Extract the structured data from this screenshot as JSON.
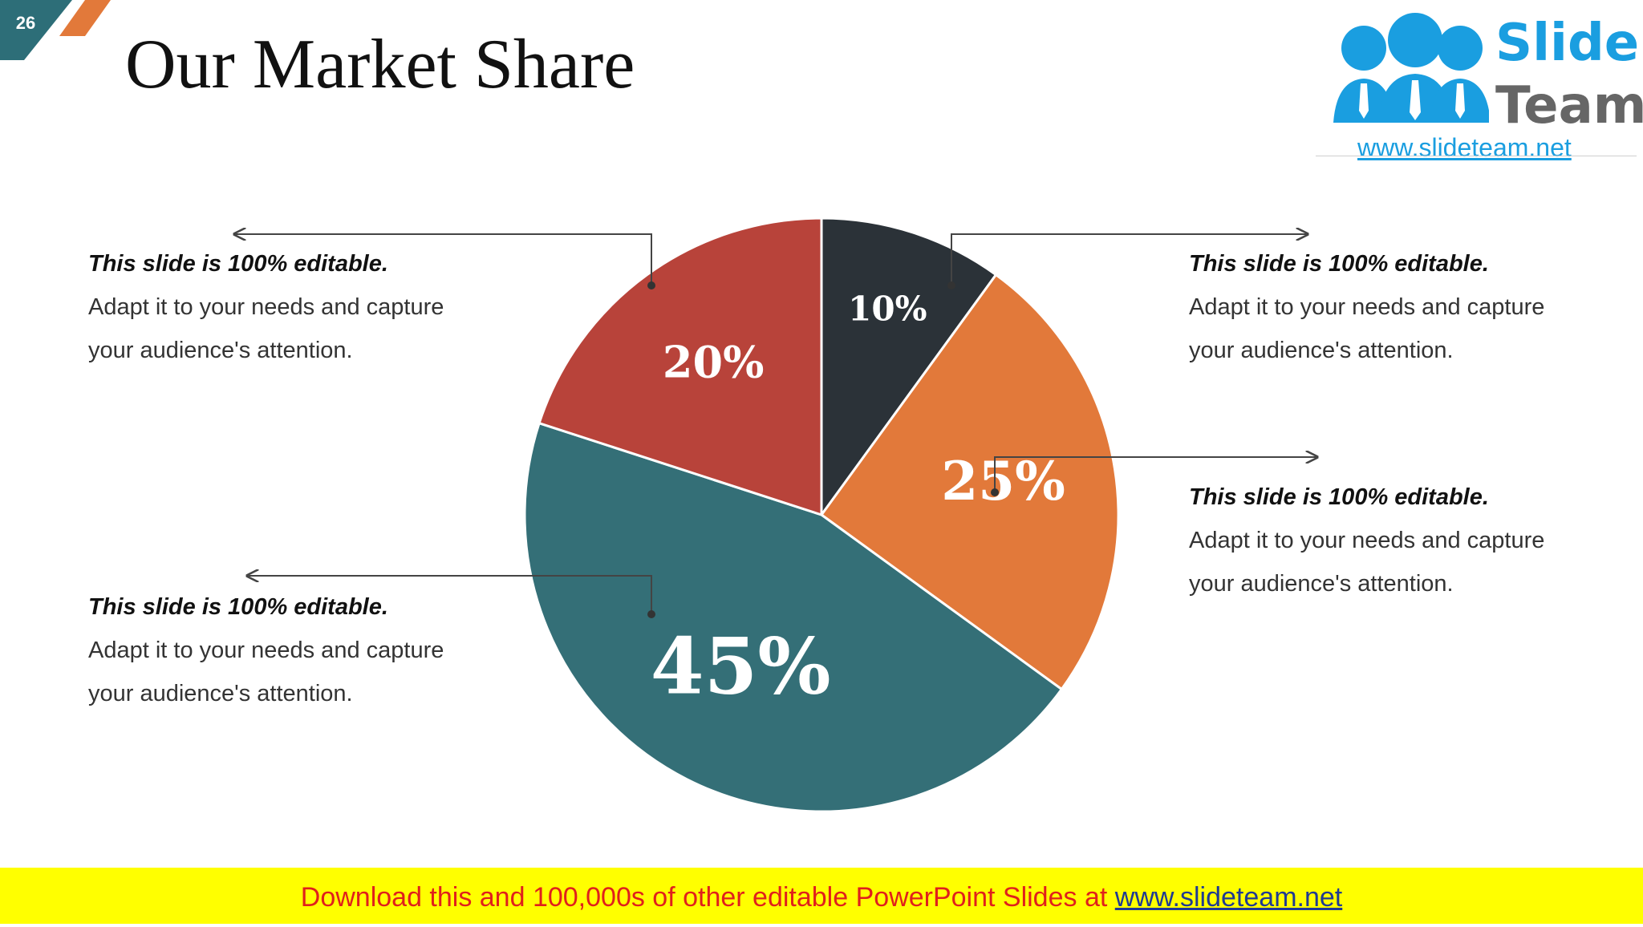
{
  "slide": {
    "number": "26",
    "title": "Our Market Share"
  },
  "logo": {
    "word_1": "Slide",
    "word_2": "Team",
    "url": "www.slideteam.net"
  },
  "callouts": [
    {
      "heading": "This slide is 100% editable.",
      "line_1": "Adapt it to your needs and capture",
      "line_2": "your audience's attention."
    },
    {
      "heading": "This slide is 100% editable.",
      "line_1": "Adapt it to your needs and capture",
      "line_2": "your audience's attention."
    },
    {
      "heading": "This slide is 100% editable.",
      "line_1": "Adapt it to your needs and capture",
      "line_2": "your audience's attention."
    },
    {
      "heading": "This slide is 100% editable.",
      "line_1": "Adapt it to your needs and capture",
      "line_2": "your audience's attention."
    }
  ],
  "banner": {
    "text": "Download this and 100,000s of other editable PowerPoint Slides at ",
    "link": "www.slideteam.net"
  },
  "colors": {
    "dark": "#2b3238",
    "orange": "#e2793a",
    "teal": "#346f77",
    "red": "#b8433a",
    "accent_teal": "#2d6e78",
    "accent_orange": "#e2793a"
  },
  "chart_data": {
    "type": "pie",
    "start_angle": 0,
    "direction": "clockwise",
    "slices": [
      {
        "label": "10%",
        "value": 10,
        "color": "#2b3238"
      },
      {
        "label": "25%",
        "value": 25,
        "color": "#e2793a"
      },
      {
        "label": "45%",
        "value": 45,
        "color": "#346f77"
      },
      {
        "label": "20%",
        "value": 20,
        "color": "#b8433a"
      }
    ]
  }
}
